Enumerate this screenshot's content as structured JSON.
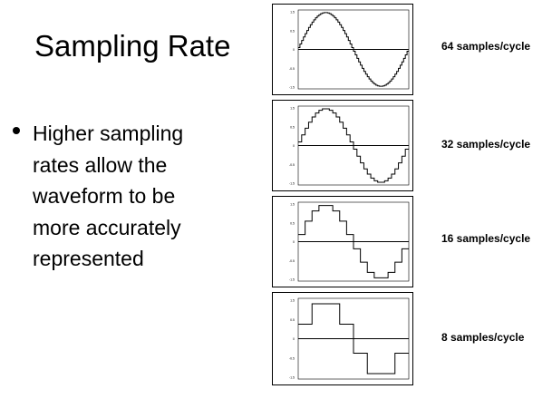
{
  "slide": {
    "title": "Sampling Rate",
    "bullet": "Higher sampling rates allow the waveform to be more accurately represented"
  },
  "panels": [
    {
      "label": "64 samples/cycle",
      "samples_per_cycle": 64,
      "ticks": [
        "1.5",
        "0.5",
        "0",
        "-0.5",
        "-1.5"
      ]
    },
    {
      "label": "32 samples/cycle",
      "samples_per_cycle": 32,
      "ticks": [
        "1.5",
        "0.5",
        "0",
        "-0.5",
        "-1.5"
      ]
    },
    {
      "label": "16 samples/cycle",
      "samples_per_cycle": 16,
      "ticks": [
        "1.5",
        "0.5",
        "0",
        "-0.5",
        "-1.5"
      ]
    },
    {
      "label": "8 samples/cycle",
      "samples_per_cycle": 8,
      "ticks": [
        "1.5",
        "0.5",
        "0",
        "-0.5",
        "-1.5"
      ]
    }
  ]
}
